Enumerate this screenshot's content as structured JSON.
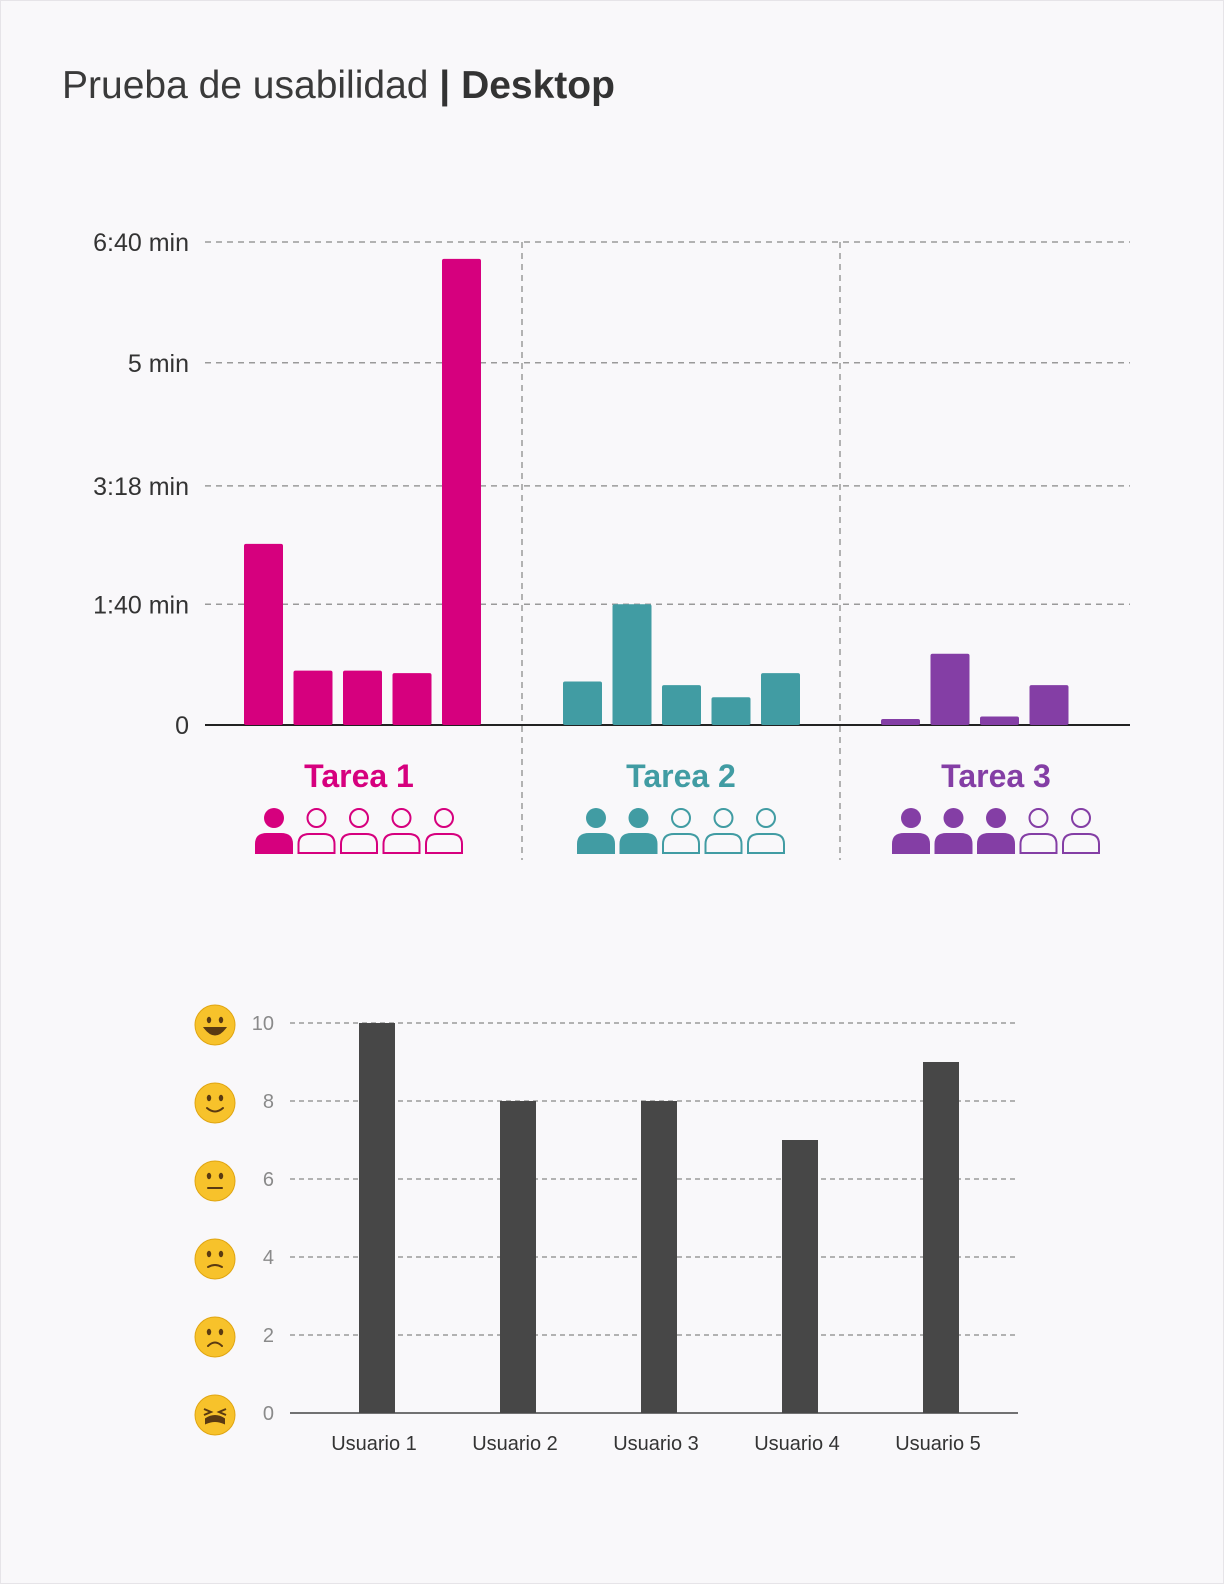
{
  "header": {
    "title_light": "Prueba de usabilidad",
    "separator": "|",
    "title_bold": "Desktop"
  },
  "chart_data": [
    {
      "type": "bar",
      "ylim": [
        0,
        400
      ],
      "y_ticks": [
        {
          "value": 0,
          "label": "0"
        },
        {
          "value": 100,
          "label": "1:40 min"
        },
        {
          "value": 198,
          "label": "3:18 min"
        },
        {
          "value": 300,
          "label": "5 min"
        },
        {
          "value": 400,
          "label": "6:40 min"
        }
      ],
      "grid": true,
      "groups": [
        {
          "label": "Tarea 1",
          "color": "#d6007e",
          "values": [
            150,
            45,
            45,
            43,
            386
          ],
          "users_filled": 1,
          "users_total": 5
        },
        {
          "label": "Tarea 2",
          "color": "#419ca3",
          "values": [
            36,
            100,
            33,
            23,
            43
          ],
          "users_filled": 2,
          "users_total": 5
        },
        {
          "label": "Tarea 3",
          "color": "#843ea5",
          "values": [
            5,
            59,
            7,
            33
          ],
          "users_filled": 3,
          "users_total": 5
        }
      ]
    },
    {
      "type": "bar",
      "categories": [
        "Usuario 1",
        "Usuario 2",
        "Usuario 3",
        "Usuario 4",
        "Usuario 5"
      ],
      "values": [
        10,
        8,
        8,
        7,
        9
      ],
      "ylim": [
        0,
        10
      ],
      "y_ticks": [
        0,
        2,
        4,
        6,
        8,
        10
      ],
      "grid": true,
      "bar_color": "#474747",
      "y_icons": [
        "tired-face-icon",
        "frowning-face-icon",
        "worried-face-icon",
        "raised-eyebrow-face-icon",
        "slightly-smiling-face-icon",
        "grinning-face-icon"
      ]
    }
  ]
}
